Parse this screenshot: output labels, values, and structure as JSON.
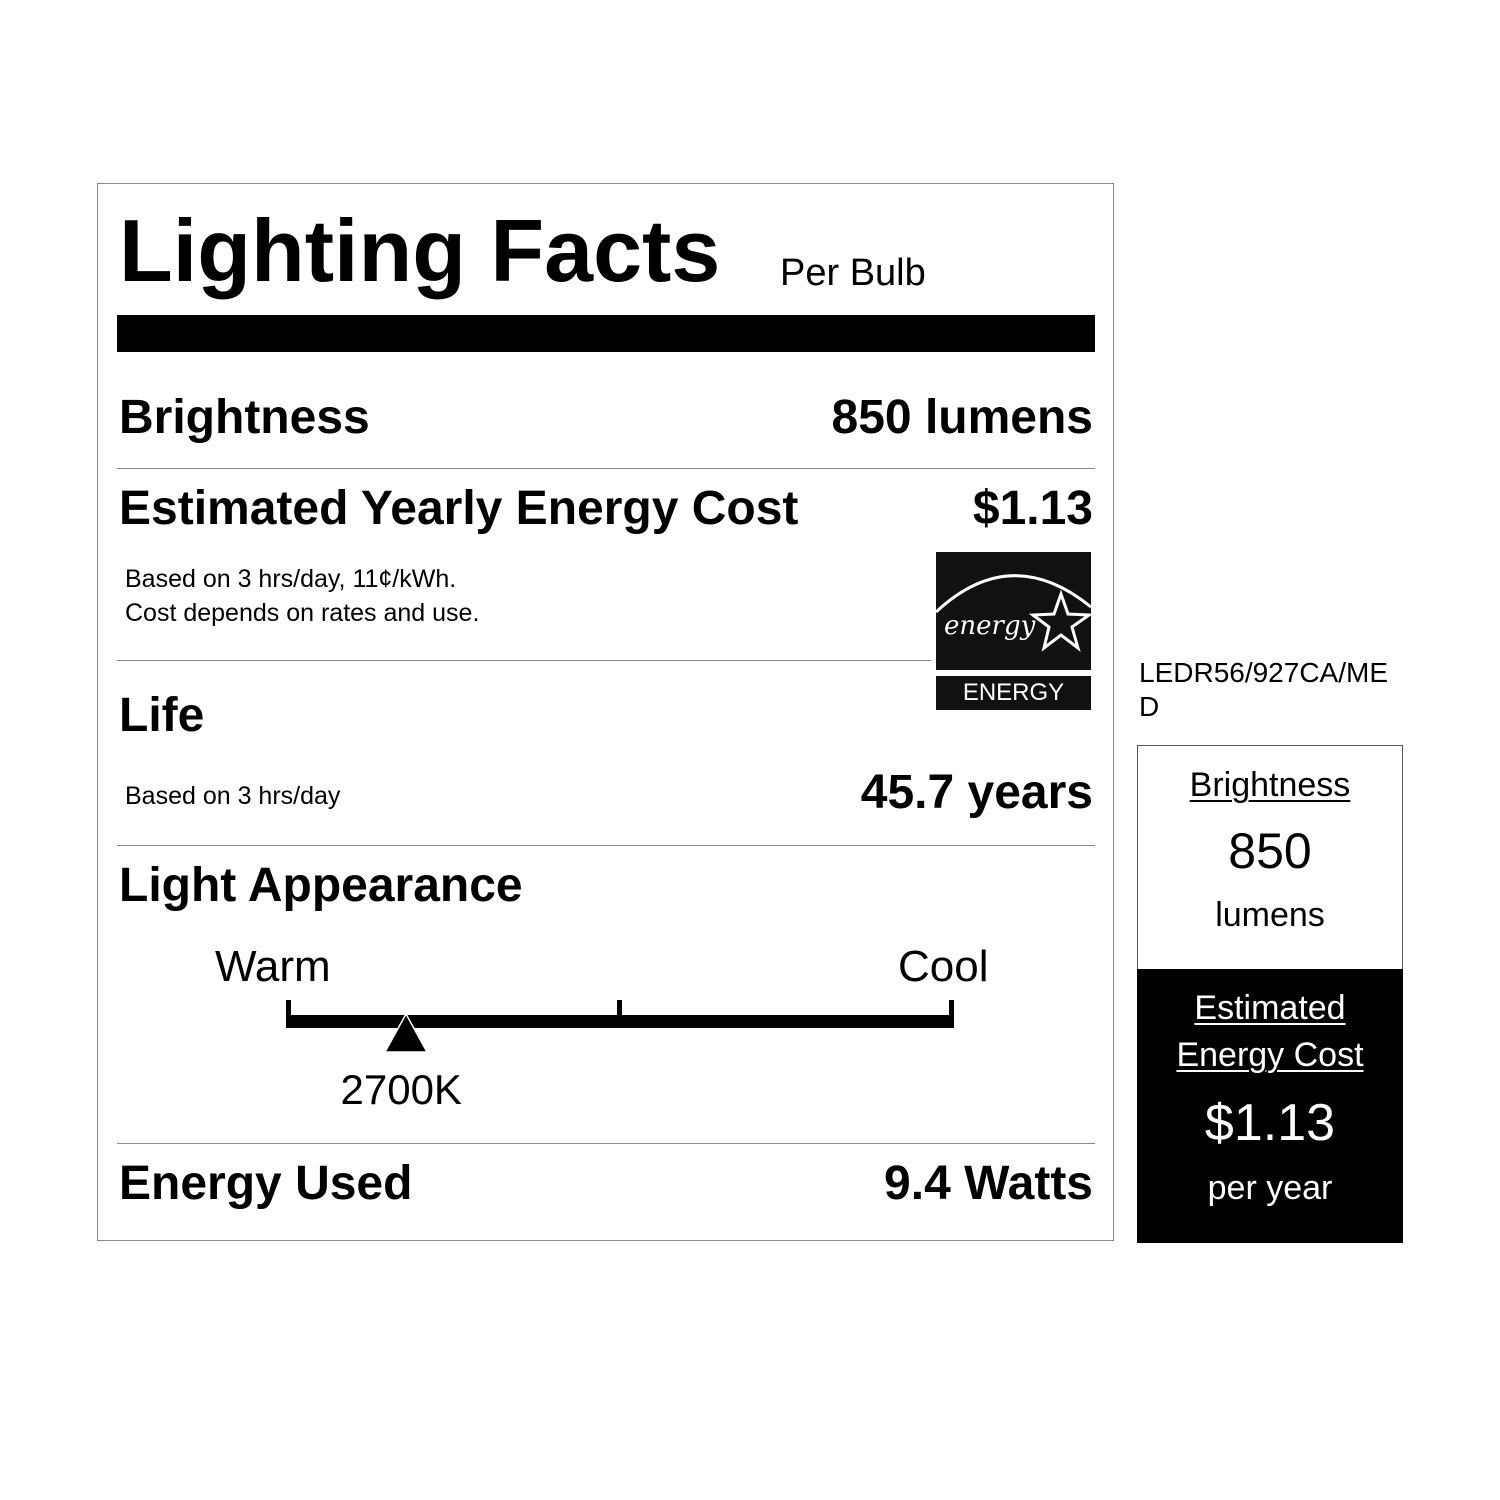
{
  "title": "Lighting Facts",
  "subtitle": "Per Bulb",
  "brightness": {
    "label": "Brightness",
    "value": "850 lumens"
  },
  "energy_cost": {
    "label": "Estimated Yearly Energy Cost",
    "value": "$1.13",
    "note_line1": "Based on 3 hrs/day, 11¢/kWh.",
    "note_line2": "Cost depends on rates and use."
  },
  "energy_star": {
    "script_text": "energy",
    "label": "ENERGY STAR"
  },
  "life": {
    "label": "Life",
    "note": "Based on 3 hrs/day",
    "value": "45.7 years"
  },
  "light_appearance": {
    "label": "Light Appearance",
    "warm_label": "Warm",
    "cool_label": "Cool",
    "marker_value": "2700K",
    "marker_position": 0.18
  },
  "energy_used": {
    "label": "Energy Used",
    "value": "9.4 Watts"
  },
  "model_number": {
    "line1": "LEDR56/927CA/ME",
    "line2": "D"
  },
  "side_label": {
    "brightness_label": "Brightness",
    "brightness_value": "850",
    "brightness_unit": "lumens",
    "cost_label_line1": "Estimated",
    "cost_label_line2": "Energy Cost",
    "cost_value": "$1.13",
    "cost_period": "per year"
  }
}
